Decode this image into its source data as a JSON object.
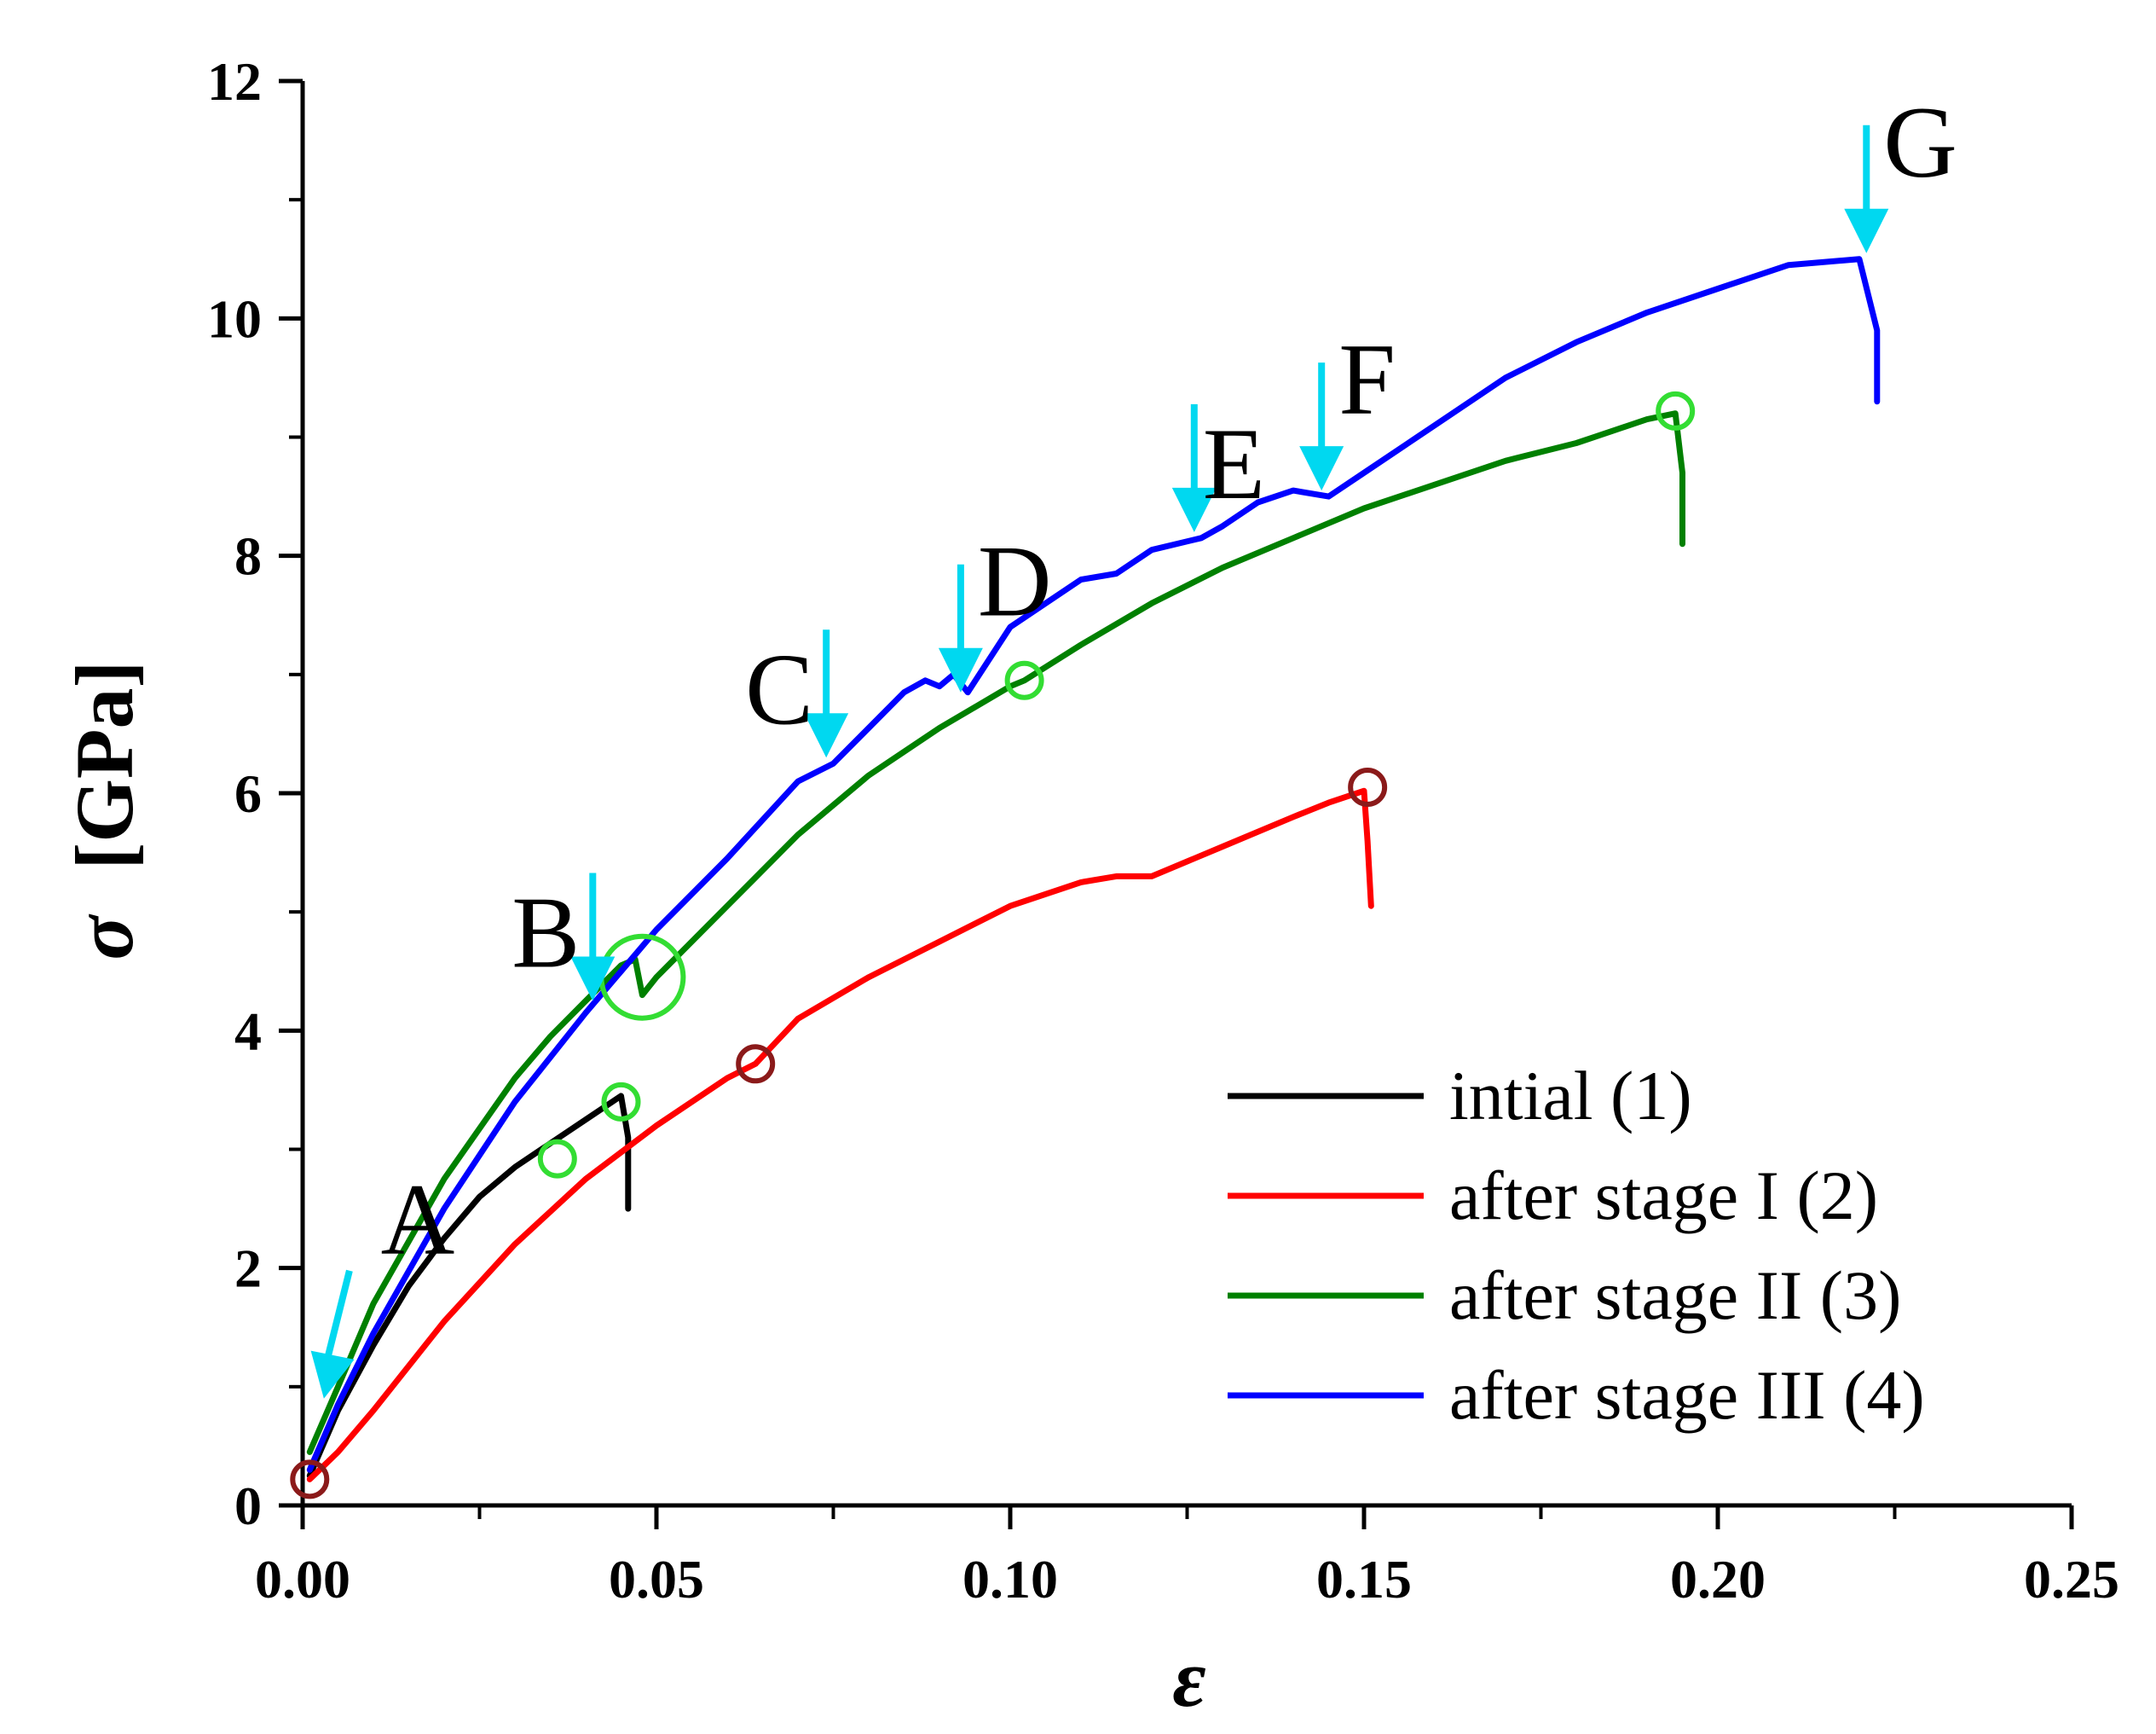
{
  "chart_data": {
    "type": "line",
    "xlabel": "ε",
    "ylabel_symbol": "σ",
    "ylabel_unit": "[GPa]",
    "xlim": [
      0,
      0.25
    ],
    "ylim": [
      0,
      12
    ],
    "x_ticks": [
      0.0,
      0.05,
      0.1,
      0.15,
      0.2,
      0.25
    ],
    "x_tick_labels": [
      "0.00",
      "0.05",
      "0.10",
      "0.15",
      "0.20",
      "0.25"
    ],
    "y_ticks": [
      0,
      2,
      4,
      6,
      8,
      10,
      12
    ],
    "y_tick_labels": [
      "0",
      "2",
      "4",
      "6",
      "8",
      "10",
      "12"
    ],
    "grid": false,
    "legend_position": "bottom-right",
    "series": [
      {
        "name": "intial (1)",
        "color": "#000000",
        "x": [
          0.001,
          0.005,
          0.01,
          0.015,
          0.02,
          0.025,
          0.03,
          0.035,
          0.04,
          0.045,
          0.046,
          0.046
        ],
        "y": [
          0.25,
          0.8,
          1.35,
          1.85,
          2.25,
          2.6,
          2.85,
          3.05,
          3.25,
          3.45,
          3.1,
          2.5
        ]
      },
      {
        "name": "after stage I (2)",
        "color": "#ff0000",
        "x": [
          0.001,
          0.005,
          0.01,
          0.02,
          0.03,
          0.04,
          0.05,
          0.06,
          0.064,
          0.07,
          0.08,
          0.09,
          0.1,
          0.11,
          0.115,
          0.12,
          0.13,
          0.14,
          0.145,
          0.15,
          0.1505,
          0.151
        ],
        "y": [
          0.22,
          0.45,
          0.8,
          1.55,
          2.2,
          2.75,
          3.2,
          3.6,
          3.72,
          4.1,
          4.45,
          4.75,
          5.05,
          5.25,
          5.3,
          5.3,
          5.55,
          5.8,
          5.92,
          6.02,
          5.6,
          5.05
        ]
      },
      {
        "name": "after stage II (3)",
        "color": "#008000",
        "x": [
          0.001,
          0.005,
          0.01,
          0.02,
          0.03,
          0.035,
          0.04,
          0.045,
          0.047,
          0.048,
          0.05,
          0.06,
          0.07,
          0.08,
          0.09,
          0.1,
          0.102,
          0.11,
          0.12,
          0.13,
          0.14,
          0.15,
          0.16,
          0.17,
          0.18,
          0.19,
          0.194,
          0.195,
          0.195
        ],
        "y": [
          0.45,
          1.0,
          1.7,
          2.75,
          3.6,
          3.95,
          4.25,
          4.55,
          4.6,
          4.3,
          4.45,
          5.05,
          5.65,
          6.15,
          6.55,
          6.9,
          6.95,
          7.25,
          7.6,
          7.9,
          8.15,
          8.4,
          8.6,
          8.8,
          8.95,
          9.15,
          9.2,
          8.7,
          8.1
        ]
      },
      {
        "name": "after stage III (4)",
        "color": "#0000ff",
        "x": [
          0.001,
          0.005,
          0.01,
          0.02,
          0.03,
          0.04,
          0.045,
          0.05,
          0.06,
          0.07,
          0.075,
          0.08,
          0.085,
          0.088,
          0.09,
          0.092,
          0.094,
          0.1,
          0.11,
          0.115,
          0.12,
          0.127,
          0.13,
          0.135,
          0.14,
          0.145,
          0.15,
          0.16,
          0.17,
          0.18,
          0.19,
          0.2,
          0.21,
          0.22,
          0.2225,
          0.2225
        ],
        "y": [
          0.3,
          0.85,
          1.45,
          2.5,
          3.4,
          4.15,
          4.5,
          4.85,
          5.45,
          6.1,
          6.25,
          6.55,
          6.85,
          6.95,
          6.9,
          7.0,
          6.85,
          7.4,
          7.8,
          7.85,
          8.05,
          8.15,
          8.25,
          8.45,
          8.55,
          8.5,
          8.7,
          9.1,
          9.5,
          9.8,
          10.05,
          10.25,
          10.45,
          10.5,
          9.9,
          9.3
        ]
      }
    ],
    "annotations": [
      {
        "label": "A",
        "x": 0.003,
        "y": 0.9,
        "color": "#00d8f0"
      },
      {
        "label": "B",
        "x": 0.041,
        "y": 4.25,
        "color": "#00d8f0"
      },
      {
        "label": "C",
        "x": 0.074,
        "y": 6.3,
        "color": "#00d8f0"
      },
      {
        "label": "D",
        "x": 0.093,
        "y": 6.85,
        "color": "#00d8f0"
      },
      {
        "label": "E",
        "x": 0.126,
        "y": 8.2,
        "color": "#00d8f0"
      },
      {
        "label": "F",
        "x": 0.144,
        "y": 8.55,
        "color": "#00d8f0"
      },
      {
        "label": "G",
        "x": 0.221,
        "y": 10.55,
        "color": "#00d8f0"
      }
    ],
    "markers": [
      {
        "series": "after stage II (3)",
        "x": 0.036,
        "y": 2.92,
        "color": "#33dd33",
        "size": "small"
      },
      {
        "series": "after stage II (3)",
        "x": 0.045,
        "y": 3.4,
        "color": "#33dd33",
        "size": "small"
      },
      {
        "series": "after stage II (3)",
        "x": 0.048,
        "y": 4.45,
        "color": "#33dd33",
        "size": "large"
      },
      {
        "series": "after stage II (3)",
        "x": 0.102,
        "y": 6.95,
        "color": "#33dd33",
        "size": "small"
      },
      {
        "series": "after stage II (3)",
        "x": 0.194,
        "y": 9.22,
        "color": "#33dd33",
        "size": "small"
      },
      {
        "series": "after stage I (2)",
        "x": 0.001,
        "y": 0.22,
        "color": "#8b1a1a",
        "size": "small"
      },
      {
        "series": "after stage I (2)",
        "x": 0.064,
        "y": 3.72,
        "color": "#8b1a1a",
        "size": "small"
      },
      {
        "series": "after stage I (2)",
        "x": 0.1505,
        "y": 6.05,
        "color": "#8b1a1a",
        "size": "small"
      }
    ]
  }
}
